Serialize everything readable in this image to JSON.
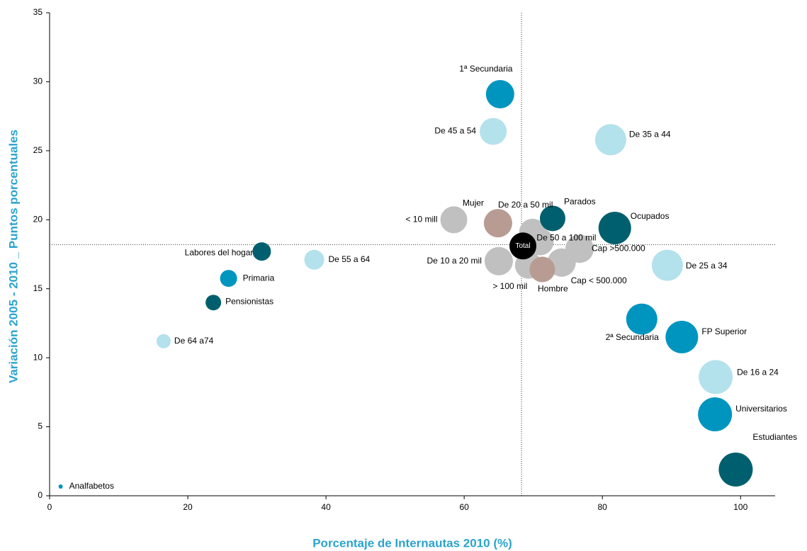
{
  "chart_data": {
    "type": "bubble",
    "xlabel": "Porcentaje de Internautas 2010 (%)",
    "ylabel": "Variación 2005 - 2010 _ Puntos porcentuales",
    "xlim": [
      0,
      105
    ],
    "xticks": [
      0,
      20,
      40,
      60,
      80,
      100
    ],
    "ylim": [
      0,
      35
    ],
    "yticks": [
      0,
      5,
      10,
      15,
      20,
      25,
      30,
      35
    ],
    "ref_x": 68.3,
    "ref_y": 18.2,
    "points": [
      {
        "label": "1ª Secundaria",
        "x": 65.2,
        "y": 29.1,
        "size": 20,
        "color": "#0095bf"
      },
      {
        "label": "De 45 a 54",
        "x": 64.2,
        "y": 26.4,
        "size": 19,
        "color": "#b3e1ec"
      },
      {
        "label": "De 35 a 44",
        "x": 81.2,
        "y": 25.8,
        "size": 22,
        "color": "#b3e1ec"
      },
      {
        "label": "< 10 mill",
        "x": 58.5,
        "y": 20.0,
        "size": 19,
        "color": "#c0c0c0"
      },
      {
        "label": "Mujer",
        "x": 64.9,
        "y": 19.75,
        "size": 20,
        "color": "#b89b93"
      },
      {
        "label": "De 50 a 100 mil",
        "x": 71.0,
        "y": 18.4,
        "size": 19,
        "color": "#c0c0c0"
      },
      {
        "label": "De 20 a 50 mil",
        "x": 69.9,
        "y": 19.1,
        "size": 19,
        "color": "#c0c0c0"
      },
      {
        "label": "Parados",
        "x": 72.8,
        "y": 20.1,
        "size": 18,
        "color": "#005f6e"
      },
      {
        "label": "Ocupados",
        "x": 81.8,
        "y": 19.4,
        "size": 23,
        "color": "#005f6e"
      },
      {
        "label": "Cap >500.000",
        "x": 76.7,
        "y": 17.9,
        "size": 20,
        "color": "#c0c0c0"
      },
      {
        "label": "Cap < 500.000",
        "x": 74.1,
        "y": 16.9,
        "size": 20,
        "color": "#c0c0c0"
      },
      {
        "label": "De 10 a 20 mil",
        "x": 65.0,
        "y": 17.0,
        "size": 20,
        "color": "#c0c0c0"
      },
      {
        "label": "> 100 mil",
        "x": 69.3,
        "y": 16.7,
        "size": 19,
        "color": "#c0c0c0"
      },
      {
        "label": "Hombre",
        "x": 71.3,
        "y": 16.4,
        "size": 18,
        "color": "#b89b93"
      },
      {
        "label": "De 25 a 34",
        "x": 89.4,
        "y": 16.7,
        "size": 22,
        "color": "#b3e1ec"
      },
      {
        "label": "2ª Secundaria",
        "x": 85.7,
        "y": 12.8,
        "size": 22,
        "color": "#0095bf"
      },
      {
        "label": "FP Superior",
        "x": 91.5,
        "y": 11.5,
        "size": 23,
        "color": "#0095bf"
      },
      {
        "label": "De 16 a 24",
        "x": 96.4,
        "y": 8.6,
        "size": 24,
        "color": "#b3e1ec"
      },
      {
        "label": "Universitarios",
        "x": 96.3,
        "y": 5.9,
        "size": 24,
        "color": "#0095bf"
      },
      {
        "label": "Estudiantes",
        "x": 99.3,
        "y": 1.9,
        "size": 24,
        "color": "#005f6e"
      },
      {
        "label": "Labores del hogar",
        "x": 30.7,
        "y": 17.7,
        "size": 13,
        "color": "#005f6e"
      },
      {
        "label": "De 55 a 64",
        "x": 38.3,
        "y": 17.1,
        "size": 14,
        "color": "#b3e1ec"
      },
      {
        "label": "Primaria",
        "x": 25.9,
        "y": 15.75,
        "size": 12,
        "color": "#0095bf"
      },
      {
        "label": "Pensionistas",
        "x": 23.7,
        "y": 14.0,
        "size": 11,
        "color": "#005f6e"
      },
      {
        "label": "De 64 a74",
        "x": 16.5,
        "y": 11.2,
        "size": 10,
        "color": "#b3e1ec"
      },
      {
        "label": "Analfabetos",
        "x": 1.6,
        "y": 0.67,
        "size": 3,
        "color": "#0095bf"
      },
      {
        "label": "Total",
        "x": 68.5,
        "y": 18.1,
        "size": 19,
        "color": "#000000"
      }
    ]
  }
}
